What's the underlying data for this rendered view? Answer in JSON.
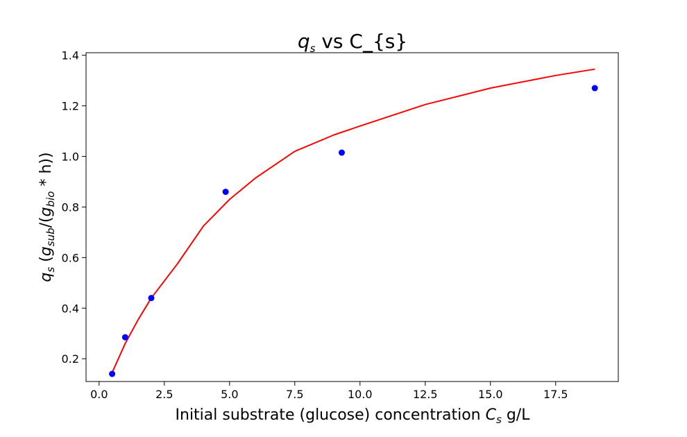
{
  "chart_data": {
    "type": "scatter",
    "title_prefix": "q",
    "title_sub": "s",
    "title_suffix": " vs C_{s}",
    "xlabel_text": "Initial substrate (glucose) concentration ",
    "xlabel_var": "C",
    "xlabel_sub": "s",
    "xlabel_unit": " g/L",
    "ylabel_var": "q",
    "ylabel_sub": "s",
    "ylabel_open": " (",
    "ylabel_g1": "g",
    "ylabel_g1_sub": "sub",
    "ylabel_mid": "/(",
    "ylabel_g2": "g",
    "ylabel_g2_sub": "bio",
    "ylabel_tail": " * h))",
    "xlim": [
      -0.5,
      19.9
    ],
    "ylim": [
      0.11,
      1.41
    ],
    "xticks": [
      0.0,
      2.5,
      5.0,
      7.5,
      10.0,
      12.5,
      15.0,
      17.5
    ],
    "xtick_labels": [
      "0.0",
      "2.5",
      "5.0",
      "7.5",
      "10.0",
      "12.5",
      "15.0",
      "17.5"
    ],
    "yticks": [
      0.2,
      0.4,
      0.6,
      0.8,
      1.0,
      1.2,
      1.4
    ],
    "ytick_labels": [
      "0.2",
      "0.4",
      "0.6",
      "0.8",
      "1.0",
      "1.2",
      "1.4"
    ],
    "grid": false,
    "series": [
      {
        "kind": "points",
        "color": "#0000ff",
        "x": [
          0.5,
          1.0,
          2.0,
          4.85,
          9.3,
          19.0
        ],
        "y": [
          0.14,
          0.285,
          0.44,
          0.86,
          1.015,
          1.27
        ]
      },
      {
        "kind": "fit-curve",
        "color": "#ff0000",
        "x": [
          0.5,
          1.0,
          1.5,
          2.0,
          3.0,
          4.0,
          5.0,
          6.0,
          7.5,
          9.0,
          10.0,
          12.5,
          15.0,
          17.5,
          19.0
        ],
        "y": [
          0.145,
          0.26,
          0.355,
          0.44,
          0.575,
          0.725,
          0.83,
          0.915,
          1.02,
          1.085,
          1.12,
          1.205,
          1.27,
          1.32,
          1.345
        ]
      }
    ]
  }
}
